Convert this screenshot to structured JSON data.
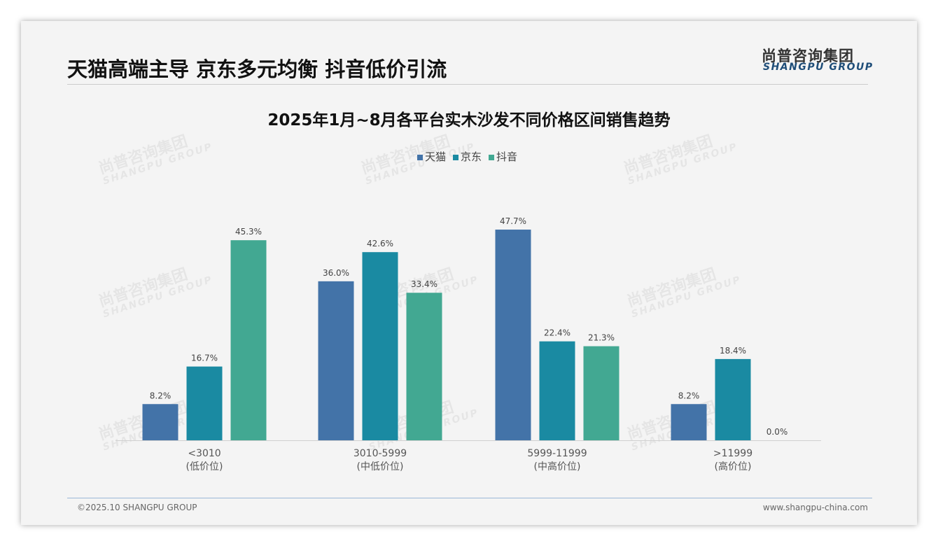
{
  "header": {
    "title": "天猫高端主导 京东多元均衡 抖音低价引流",
    "logo_cn": "尚普咨询集团",
    "logo_en": "SHANGPU GROUP"
  },
  "footer": {
    "copyright": "©2025.10 SHANGPU GROUP",
    "website": "www.shangpu-china.com"
  },
  "watermark": {
    "cn": "尚普咨询集团",
    "en": "SHANGPU GROUP"
  },
  "colors": {
    "天猫": "#4373a8",
    "京东": "#1a8aa2",
    "抖音": "#42a892"
  },
  "chart_data": {
    "type": "bar",
    "title": "2025年1月~8月各平台实木沙发不同价格区间销售趋势",
    "categories": [
      "<3010",
      "3010-5999",
      "5999-11999",
      ">11999"
    ],
    "category_sublabels": [
      "(低价位)",
      "(中低价位)",
      "(中高价位)",
      "(高价位)"
    ],
    "series": [
      {
        "name": "天猫",
        "values": [
          8.2,
          36.0,
          47.7,
          8.2
        ]
      },
      {
        "name": "京东",
        "values": [
          16.7,
          42.6,
          22.4,
          18.4
        ]
      },
      {
        "name": "抖音",
        "values": [
          45.3,
          33.4,
          21.3,
          0.0
        ]
      }
    ],
    "unit": "%",
    "ylim": [
      0,
      50
    ],
    "legend": "top",
    "grid": false
  }
}
